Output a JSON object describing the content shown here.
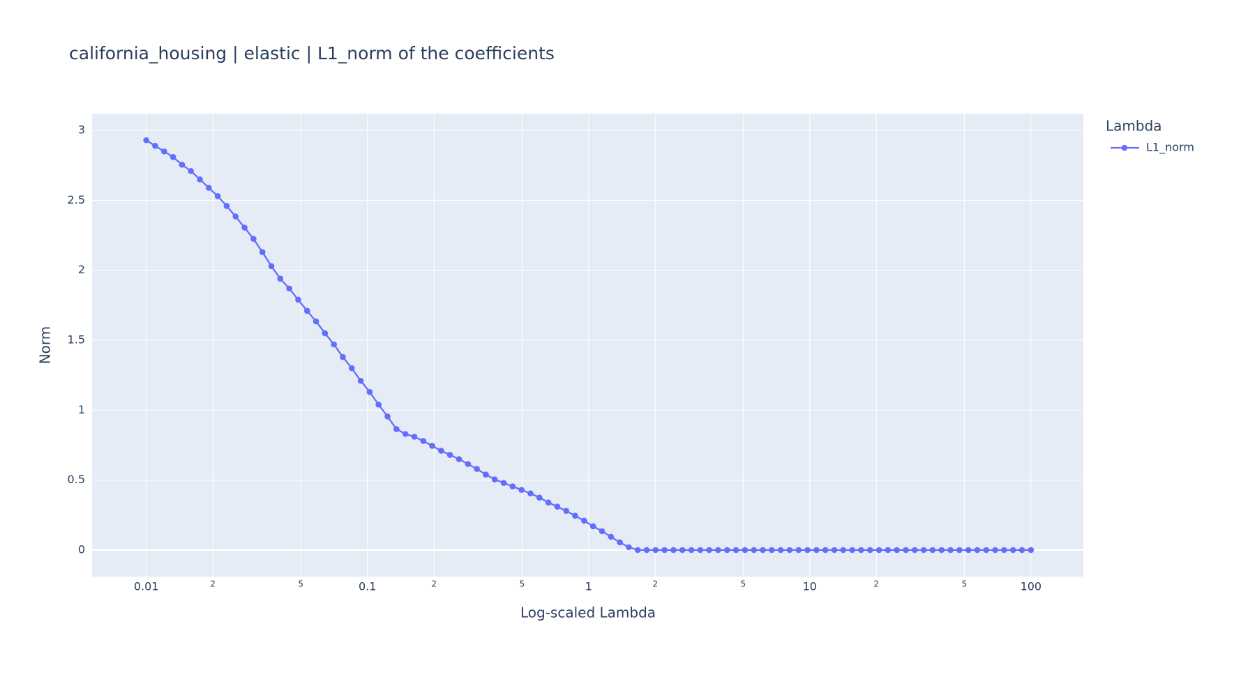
{
  "chart_data": {
    "type": "line",
    "title": "california_housing | elastic | L1_norm of the coefficients",
    "xlabel": "Log-scaled Lambda",
    "ylabel": "Norm",
    "legend_title": "Lambda",
    "legend": "top-right-outside",
    "xscale": "log",
    "grid": true,
    "background": "#e5ecf6",
    "xlim": [
      0.00569,
      172.6
    ],
    "ylim": [
      -0.19,
      3.12
    ],
    "xticks": [
      0.01,
      {
        "value": 0.02,
        "label": "2"
      },
      {
        "value": 0.05,
        "label": "5"
      },
      0.1,
      {
        "value": 0.2,
        "label": "2"
      },
      {
        "value": 0.5,
        "label": "5"
      },
      1,
      {
        "value": 2,
        "label": "2"
      },
      {
        "value": 5,
        "label": "5"
      },
      10,
      {
        "value": 20,
        "label": "2"
      },
      {
        "value": 50,
        "label": "5"
      },
      100
    ],
    "yticks": [
      0,
      0.5,
      1,
      1.5,
      2,
      2.5,
      3
    ],
    "x": [
      0.01,
      0.01097,
      0.01205,
      0.01322,
      0.01451,
      0.01592,
      0.01748,
      0.01918,
      0.02105,
      0.0231,
      0.02535,
      0.02783,
      0.03054,
      0.03352,
      0.03679,
      0.04037,
      0.04431,
      0.04863,
      0.05337,
      0.05857,
      0.06428,
      0.07055,
      0.07743,
      0.08498,
      0.09326,
      0.1024,
      0.1123,
      0.1233,
      0.1353,
      0.1485,
      0.163,
      0.1789,
      0.1963,
      0.2154,
      0.2364,
      0.2595,
      0.2848,
      0.3126,
      0.343,
      0.3765,
      0.4132,
      0.4535,
      0.4977,
      0.5462,
      0.5995,
      0.6579,
      0.7221,
      0.7925,
      0.8697,
      0.9545,
      1.048,
      1.15,
      1.262,
      1.385,
      1.52,
      1.668,
      1.831,
      2.009,
      2.205,
      2.42,
      2.656,
      2.915,
      3.199,
      3.511,
      3.854,
      4.229,
      4.642,
      5.094,
      5.591,
      6.136,
      6.734,
      7.391,
      8.111,
      8.902,
      9.77,
      10.72,
      11.77,
      12.92,
      14.17,
      15.56,
      17.07,
      18.74,
      20.57,
      22.57,
      24.77,
      27.19,
      29.84,
      32.75,
      35.94,
      39.44,
      43.29,
      47.51,
      52.14,
      57.22,
      62.8,
      68.93,
      75.65,
      83.02,
      91.11,
      100
    ],
    "series": [
      {
        "name": "L1_norm",
        "color": "#636efa",
        "values": [
          2.93,
          2.89,
          2.85,
          2.81,
          2.755,
          2.71,
          2.65,
          2.59,
          2.53,
          2.46,
          2.385,
          2.305,
          2.225,
          2.13,
          2.03,
          1.94,
          1.87,
          1.79,
          1.71,
          1.635,
          1.55,
          1.47,
          1.38,
          1.3,
          1.21,
          1.13,
          1.04,
          0.955,
          0.865,
          0.83,
          0.81,
          0.78,
          0.745,
          0.71,
          0.68,
          0.65,
          0.615,
          0.58,
          0.54,
          0.505,
          0.48,
          0.455,
          0.43,
          0.405,
          0.375,
          0.34,
          0.31,
          0.28,
          0.245,
          0.21,
          0.17,
          0.135,
          0.095,
          0.055,
          0.02,
          0,
          0,
          0,
          0,
          0,
          0,
          0,
          0,
          0,
          0,
          0,
          0,
          0,
          0,
          0,
          0,
          0,
          0,
          0,
          0,
          0,
          0,
          0,
          0,
          0,
          0,
          0,
          0,
          0,
          0,
          0,
          0,
          0,
          0,
          0,
          0,
          0,
          0,
          0,
          0,
          0,
          0,
          0,
          0,
          0
        ]
      }
    ]
  }
}
